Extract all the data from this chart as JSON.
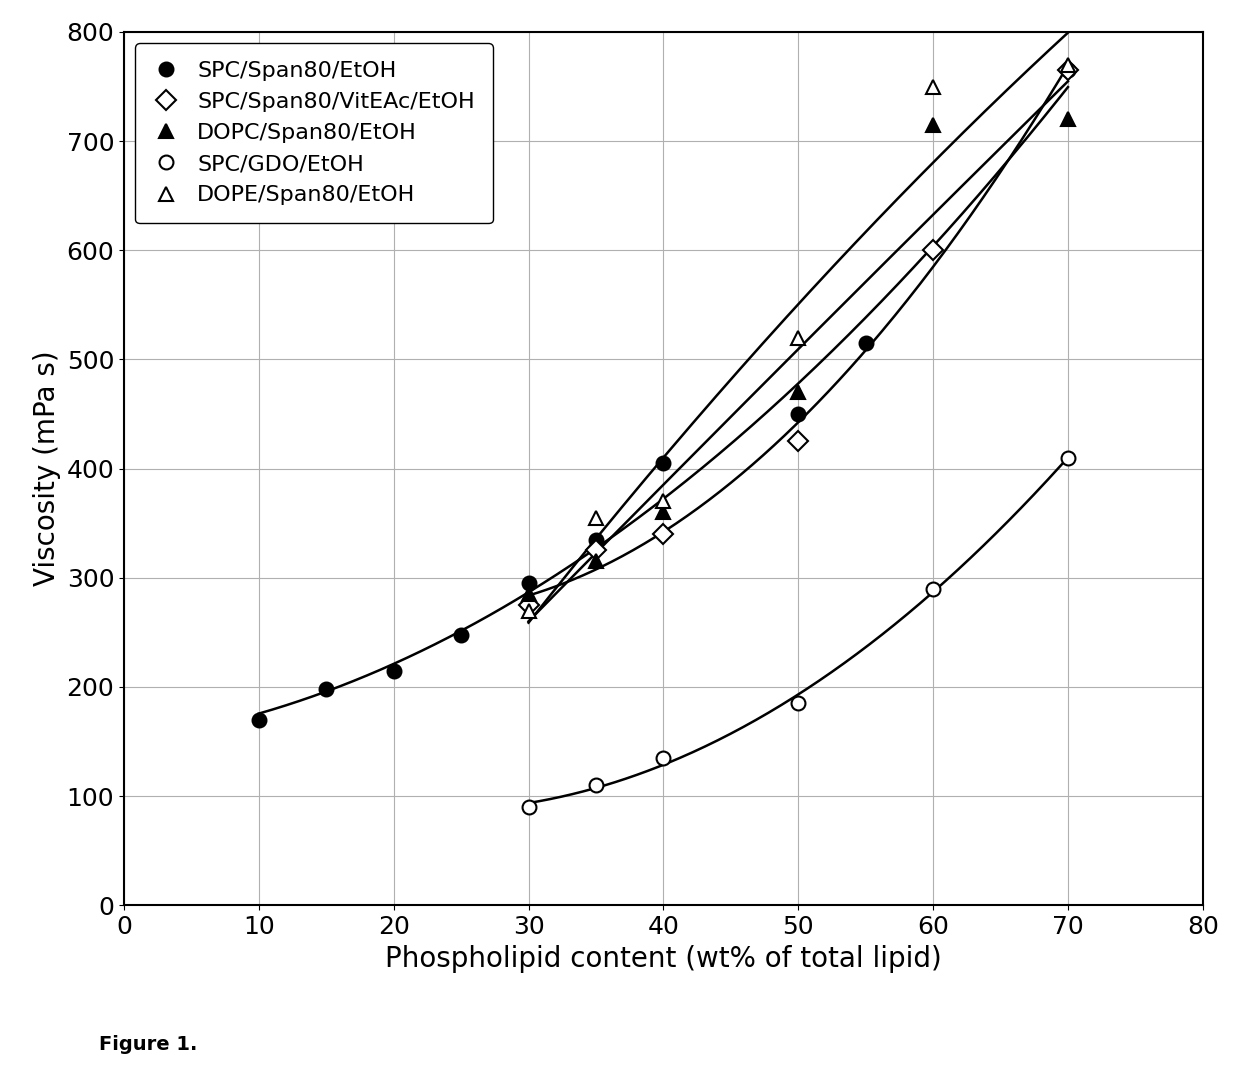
{
  "title": "",
  "xlabel": "Phospholipid content (wt% of total lipid)",
  "ylabel": "Viscosity (mPa s)",
  "xlim": [
    0,
    80
  ],
  "ylim": [
    0,
    800
  ],
  "xticks": [
    0,
    10,
    20,
    30,
    40,
    50,
    60,
    70,
    80
  ],
  "yticks": [
    0,
    100,
    200,
    300,
    400,
    500,
    600,
    700,
    800
  ],
  "figure_caption": "Figure 1.",
  "series": [
    {
      "label": "SPC/Span80/EtOH",
      "marker": "o",
      "filled": true,
      "color": "black",
      "x": [
        10,
        15,
        20,
        25,
        30,
        35,
        40,
        50,
        55,
        70
      ],
      "y": [
        170,
        198,
        215,
        248,
        295,
        335,
        405,
        450,
        515,
        765
      ]
    },
    {
      "label": "SPC/Span80/VitEAc/EtOH",
      "marker": "diamond",
      "filled": false,
      "color": "black",
      "x": [
        30,
        35,
        40,
        50,
        60,
        70
      ],
      "y": [
        275,
        325,
        340,
        425,
        600,
        765
      ]
    },
    {
      "label": "DOPC/Span80/EtOH",
      "marker": "triangle_up",
      "filled": true,
      "color": "black",
      "x": [
        30,
        35,
        40,
        50,
        60,
        70
      ],
      "y": [
        285,
        315,
        360,
        470,
        715,
        720
      ]
    },
    {
      "label": "SPC/GDO/EtOH",
      "marker": "o",
      "filled": false,
      "color": "black",
      "x": [
        30,
        35,
        40,
        50,
        60,
        70
      ],
      "y": [
        90,
        110,
        135,
        185,
        290,
        410
      ]
    },
    {
      "label": "DOPE/Span80/EtOH",
      "marker": "triangle_up",
      "filled": false,
      "color": "black",
      "x": [
        30,
        35,
        40,
        50,
        60,
        70
      ],
      "y": [
        270,
        355,
        370,
        520,
        750,
        770
      ]
    }
  ],
  "background_color": "#ffffff",
  "grid_color": "#b0b0b0",
  "label_font_size": 20,
  "tick_font_size": 18,
  "legend_font_size": 16
}
